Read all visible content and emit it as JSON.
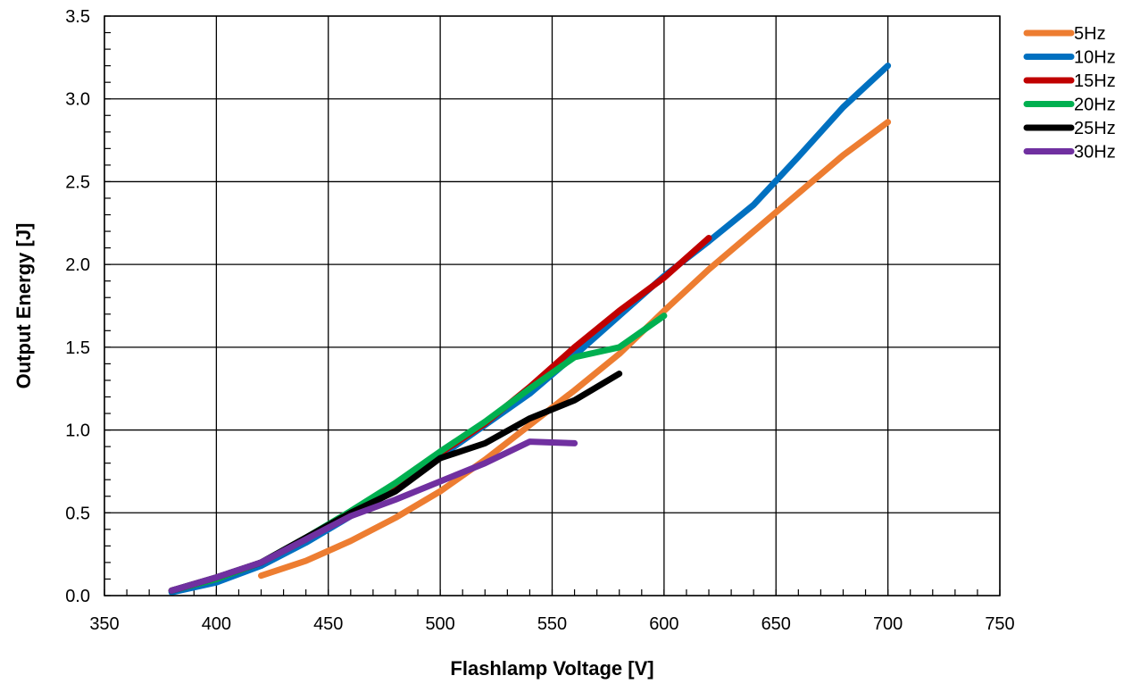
{
  "chart_data": {
    "type": "line",
    "xlabel": "Flashlamp Voltage [V]",
    "ylabel": "Output Energy [J]",
    "xlim": [
      350,
      750
    ],
    "ylim": [
      0,
      3.5
    ],
    "x_ticks": [
      "350",
      "400",
      "450",
      "500",
      "550",
      "600",
      "650",
      "700",
      "750"
    ],
    "y_ticks": [
      "0.0",
      "0.5",
      "1.0",
      "1.5",
      "2.0",
      "2.5",
      "3.0",
      "3.5"
    ],
    "x_tick_values": [
      350,
      400,
      450,
      500,
      550,
      600,
      650,
      700,
      750
    ],
    "y_tick_values": [
      0,
      0.5,
      1.0,
      1.5,
      2.0,
      2.5,
      3.0,
      3.5
    ],
    "grid": true,
    "legend_position": "right",
    "series": [
      {
        "name": "5Hz",
        "color": "#ED7D31",
        "x": [
          420,
          440,
          460,
          480,
          500,
          520,
          540,
          560,
          580,
          600,
          620,
          640,
          660,
          680,
          700
        ],
        "y": [
          0.12,
          0.21,
          0.33,
          0.47,
          0.63,
          0.82,
          1.03,
          1.24,
          1.46,
          1.72,
          1.97,
          2.2,
          2.43,
          2.66,
          2.86
        ]
      },
      {
        "name": "10Hz",
        "color": "#0070C0",
        "x": [
          380,
          400,
          420,
          440,
          460,
          480,
          500,
          520,
          540,
          560,
          580,
          600,
          620,
          640,
          660,
          680,
          700
        ],
        "y": [
          0.02,
          0.08,
          0.18,
          0.32,
          0.48,
          0.65,
          0.84,
          1.03,
          1.22,
          1.45,
          1.69,
          1.93,
          2.14,
          2.36,
          2.65,
          2.95,
          3.2
        ]
      },
      {
        "name": "15Hz",
        "color": "#C00000",
        "x": [
          380,
          400,
          420,
          440,
          460,
          480,
          500,
          520,
          540,
          560,
          580,
          600,
          620
        ],
        "y": [
          0.03,
          0.1,
          0.2,
          0.34,
          0.5,
          0.67,
          0.86,
          1.04,
          1.26,
          1.5,
          1.72,
          1.92,
          2.16
        ]
      },
      {
        "name": "20Hz",
        "color": "#00B050",
        "x": [
          380,
          400,
          420,
          440,
          460,
          480,
          500,
          520,
          540,
          560,
          580,
          600
        ],
        "y": [
          0.03,
          0.1,
          0.2,
          0.35,
          0.51,
          0.68,
          0.87,
          1.05,
          1.25,
          1.44,
          1.5,
          1.69
        ]
      },
      {
        "name": "25Hz",
        "color": "#000000",
        "x": [
          380,
          400,
          420,
          440,
          460,
          480,
          500,
          520,
          540,
          560,
          580
        ],
        "y": [
          0.03,
          0.11,
          0.2,
          0.35,
          0.5,
          0.63,
          0.83,
          0.92,
          1.07,
          1.18,
          1.34
        ]
      },
      {
        "name": "30Hz",
        "color": "#7030A0",
        "x": [
          380,
          400,
          420,
          440,
          460,
          480,
          500,
          520,
          540,
          560
        ],
        "y": [
          0.03,
          0.11,
          0.2,
          0.34,
          0.48,
          0.58,
          0.69,
          0.8,
          0.93,
          0.92
        ]
      }
    ]
  }
}
